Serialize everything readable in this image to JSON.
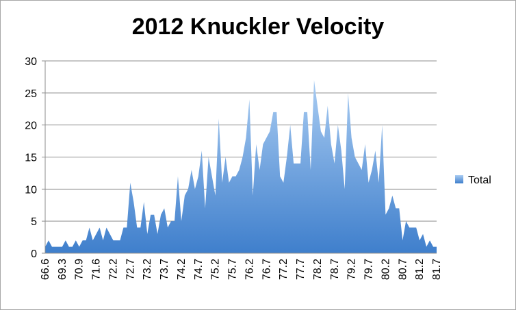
{
  "chart_data": {
    "type": "area",
    "title": "2012 Knuckler Velocity",
    "xlabel": "",
    "ylabel": "",
    "ylim": [
      0,
      30
    ],
    "yticks": [
      0,
      5,
      10,
      15,
      20,
      25,
      30
    ],
    "grid": true,
    "legend": {
      "placement": "right",
      "entries": [
        "Total"
      ]
    },
    "x_tick_labels": [
      "66.6",
      "69.3",
      "70.9",
      "71.6",
      "72.2",
      "72.7",
      "73.2",
      "73.7",
      "74.2",
      "74.7",
      "75.2",
      "75.7",
      "76.2",
      "76.7",
      "77.2",
      "77.7",
      "78.2",
      "78.7",
      "79.2",
      "79.7",
      "80.2",
      "80.7",
      "81.2",
      "81.7"
    ],
    "series": [
      {
        "name": "Total",
        "color": "#4f8fd6",
        "values": [
          1,
          2,
          1,
          1,
          1,
          1,
          2,
          1,
          1,
          2,
          1,
          2,
          2,
          4,
          2,
          3,
          4,
          2,
          4,
          3,
          2,
          2,
          2,
          4,
          4,
          11,
          8,
          4,
          4,
          8,
          3,
          6,
          6,
          3,
          6,
          7,
          4,
          5,
          5,
          12,
          5,
          9,
          10,
          13,
          10,
          12,
          16,
          7,
          15,
          12,
          9,
          21,
          11,
          15,
          11,
          12,
          12,
          13,
          15,
          18,
          24,
          9,
          17,
          13,
          17,
          18,
          19,
          22,
          22,
          12,
          11,
          15,
          20,
          14,
          14,
          14,
          22,
          22,
          13,
          27,
          23,
          19,
          18,
          23,
          17,
          14,
          20,
          16,
          10,
          25,
          18,
          15,
          14,
          13,
          17,
          11,
          13,
          16,
          11,
          20,
          6,
          7,
          9,
          7,
          7,
          2,
          5,
          4,
          4,
          4,
          2,
          3,
          1,
          2,
          1,
          1
        ]
      }
    ]
  }
}
